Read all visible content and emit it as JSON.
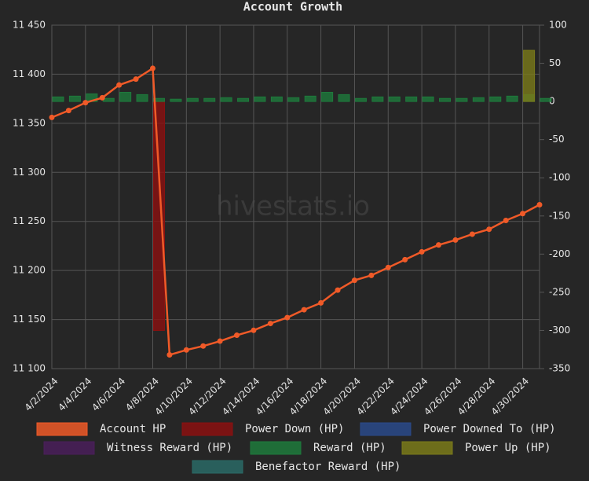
{
  "chart_data": {
    "type": "combo",
    "title": "Account Growth",
    "watermark": "hivestats.io",
    "categories": [
      "4/2/2024",
      null,
      "4/4/2024",
      null,
      "4/6/2024",
      null,
      "4/8/2024",
      null,
      "4/10/2024",
      null,
      "4/12/2024",
      null,
      "4/14/2024",
      null,
      "4/16/2024",
      null,
      "4/18/2024",
      null,
      "4/20/2024",
      null,
      "4/22/2024",
      null,
      "4/24/2024",
      null,
      "4/26/2024",
      null,
      "4/28/2024",
      null,
      "4/30/2024",
      null
    ],
    "ylim": [
      11100,
      11450
    ],
    "yticks": [
      {
        "value": 11100,
        "label": "11 100"
      },
      {
        "value": 11150,
        "label": "11 150"
      },
      {
        "value": 11200,
        "label": "11 200"
      },
      {
        "value": 11250,
        "label": "11 250"
      },
      {
        "value": 11300,
        "label": "11 300"
      },
      {
        "value": 11350,
        "label": "11 350"
      },
      {
        "value": 11400,
        "label": "11 400"
      },
      {
        "value": 11450,
        "label": "11 450"
      }
    ],
    "y2lim": [
      -350,
      100
    ],
    "y2ticks": [
      -350,
      -300,
      -250,
      -200,
      -150,
      -100,
      -50,
      0,
      50,
      100
    ],
    "grid": true,
    "series": [
      {
        "name": "Account HP",
        "type": "line",
        "axis": "y",
        "color": "#f05a28",
        "values": [
          11356,
          11363,
          11371,
          11376,
          11389,
          11395,
          11406,
          11114,
          11119,
          11123,
          11128,
          11134,
          11139,
          11146,
          11152,
          11160,
          11167,
          11180,
          11190,
          11195,
          11203,
          11211,
          11219,
          11226,
          11231,
          11237,
          11242,
          11251,
          11258,
          11267
        ]
      },
      {
        "name": "Power Down (HP)",
        "type": "bar",
        "axis": "y2",
        "color": "#8b1010",
        "values": [
          null,
          null,
          null,
          null,
          null,
          null,
          -300,
          null,
          null,
          null,
          null,
          null,
          null,
          null,
          null,
          null,
          null,
          null,
          null,
          null,
          null,
          null,
          null,
          null,
          null,
          null,
          null,
          null,
          null,
          null
        ]
      },
      {
        "name": "Power Downed To (HP)",
        "type": "bar",
        "axis": "y2",
        "color": "#2a4a8a",
        "values": [
          null,
          null,
          null,
          null,
          null,
          null,
          null,
          null,
          null,
          null,
          null,
          null,
          null,
          null,
          null,
          null,
          null,
          null,
          null,
          null,
          null,
          null,
          null,
          null,
          null,
          null,
          null,
          null,
          null,
          null
        ]
      },
      {
        "name": "Witness Reward (HP)",
        "type": "bar",
        "axis": "y2",
        "color": "#4a1f5a",
        "values": [
          null,
          null,
          null,
          null,
          null,
          null,
          null,
          null,
          null,
          null,
          null,
          null,
          null,
          null,
          null,
          null,
          null,
          null,
          null,
          null,
          null,
          null,
          null,
          null,
          null,
          null,
          null,
          null,
          null,
          null
        ]
      },
      {
        "name": "Reward (HP)",
        "type": "bar",
        "axis": "y2",
        "color": "#1e7a3c",
        "values": [
          6,
          7,
          10,
          4,
          12,
          9,
          4,
          3,
          4,
          4,
          5,
          4,
          6,
          6,
          5,
          7,
          12,
          9,
          4,
          6,
          6,
          6,
          6,
          4,
          4,
          5,
          6,
          7,
          9,
          4
        ]
      },
      {
        "name": "Power Up (HP)",
        "type": "bar",
        "axis": "y2",
        "color": "#7a7a1a",
        "values": [
          null,
          null,
          null,
          null,
          null,
          null,
          null,
          null,
          null,
          null,
          null,
          null,
          null,
          null,
          null,
          null,
          null,
          null,
          null,
          null,
          null,
          null,
          null,
          null,
          null,
          null,
          null,
          null,
          67,
          null
        ]
      },
      {
        "name": "Benefactor Reward (HP)",
        "type": "bar",
        "axis": "y2",
        "color": "#2a6a66",
        "values": [
          null,
          null,
          null,
          null,
          null,
          null,
          null,
          null,
          null,
          null,
          null,
          null,
          null,
          null,
          null,
          null,
          null,
          null,
          null,
          null,
          null,
          null,
          null,
          null,
          null,
          null,
          null,
          null,
          null,
          null
        ]
      }
    ]
  }
}
